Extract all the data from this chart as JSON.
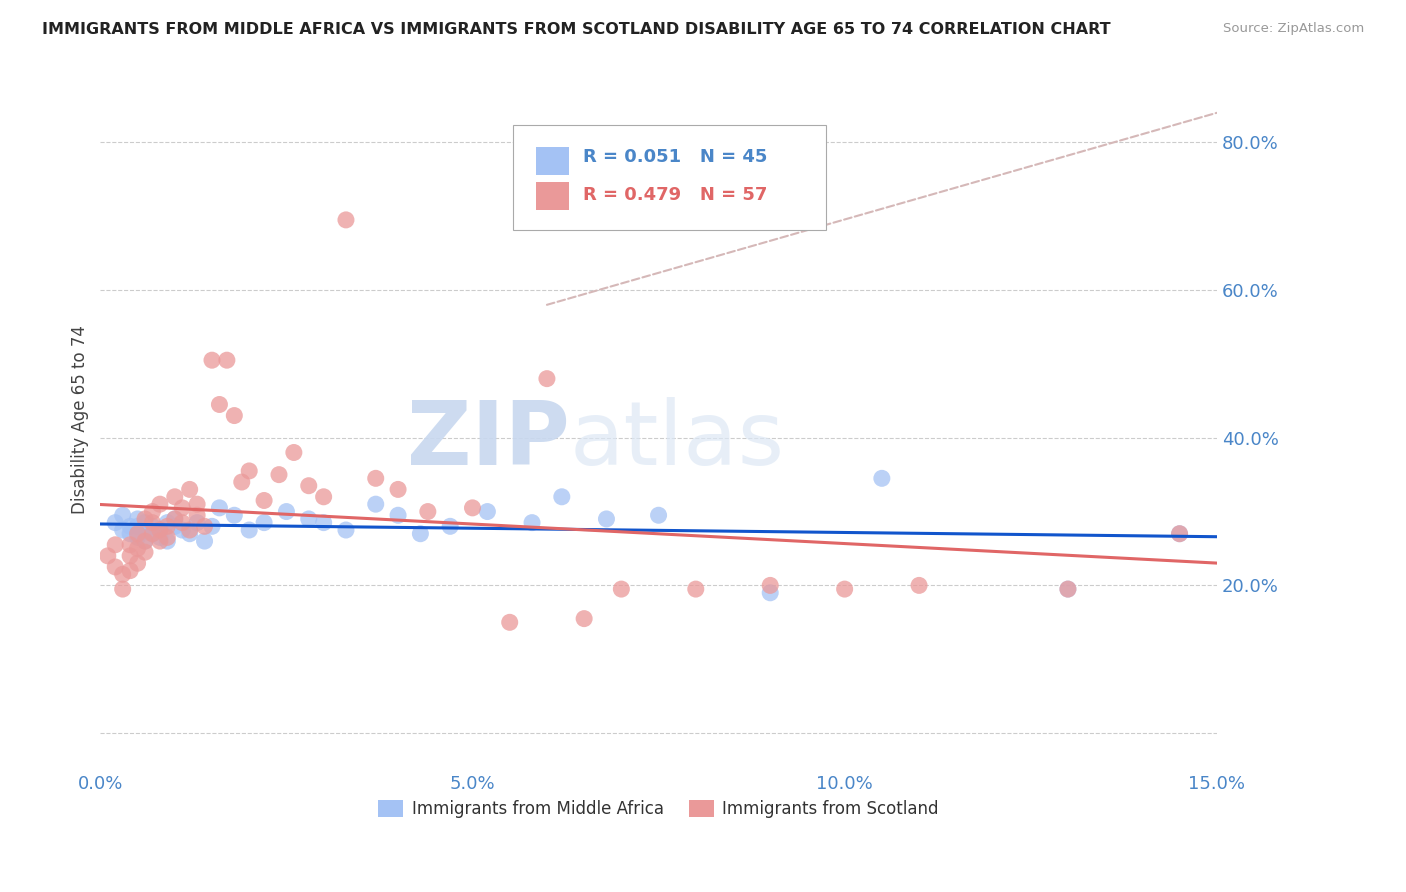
{
  "title": "IMMIGRANTS FROM MIDDLE AFRICA VS IMMIGRANTS FROM SCOTLAND DISABILITY AGE 65 TO 74 CORRELATION CHART",
  "source": "Source: ZipAtlas.com",
  "ylabel": "Disability Age 65 to 74",
  "xlim": [
    0.0,
    0.15
  ],
  "ylim": [
    -0.05,
    0.9
  ],
  "yticks": [
    0.0,
    0.2,
    0.4,
    0.6,
    0.8
  ],
  "ytick_labels": [
    "",
    "20.0%",
    "40.0%",
    "60.0%",
    "80.0%"
  ],
  "xticks": [
    0.0,
    0.05,
    0.1,
    0.15
  ],
  "xtick_labels": [
    "0.0%",
    "5.0%",
    "10.0%",
    "15.0%"
  ],
  "series1_label": "Immigrants from Middle Africa",
  "series1_color": "#a4c2f4",
  "series1_R": "0.051",
  "series1_N": "45",
  "series2_label": "Immigrants from Scotland",
  "series2_color": "#ea9999",
  "series2_R": "0.479",
  "series2_N": "57",
  "watermark_zip": "ZIP",
  "watermark_atlas": "atlas",
  "background_color": "#ffffff",
  "grid_color": "#cccccc",
  "axis_color": "#4a86c8",
  "blue_line_color": "#1155cc",
  "pink_line_color": "#e06666",
  "dashed_line_color": "#d5b8b8",
  "series1_x": [
    0.002,
    0.003,
    0.003,
    0.004,
    0.004,
    0.005,
    0.005,
    0.005,
    0.006,
    0.006,
    0.006,
    0.007,
    0.007,
    0.008,
    0.008,
    0.009,
    0.009,
    0.01,
    0.01,
    0.011,
    0.012,
    0.013,
    0.014,
    0.015,
    0.016,
    0.018,
    0.02,
    0.022,
    0.025,
    0.028,
    0.03,
    0.033,
    0.037,
    0.04,
    0.043,
    0.047,
    0.052,
    0.058,
    0.062,
    0.068,
    0.075,
    0.09,
    0.105,
    0.13,
    0.145
  ],
  "series1_y": [
    0.285,
    0.275,
    0.295,
    0.28,
    0.27,
    0.29,
    0.265,
    0.28,
    0.275,
    0.285,
    0.26,
    0.28,
    0.27,
    0.275,
    0.265,
    0.285,
    0.26,
    0.28,
    0.29,
    0.275,
    0.27,
    0.285,
    0.26,
    0.28,
    0.305,
    0.295,
    0.275,
    0.285,
    0.3,
    0.29,
    0.285,
    0.275,
    0.31,
    0.295,
    0.27,
    0.28,
    0.3,
    0.285,
    0.32,
    0.29,
    0.295,
    0.19,
    0.345,
    0.195,
    0.27
  ],
  "series2_x": [
    0.001,
    0.002,
    0.002,
    0.003,
    0.003,
    0.004,
    0.004,
    0.004,
    0.005,
    0.005,
    0.005,
    0.006,
    0.006,
    0.006,
    0.007,
    0.007,
    0.007,
    0.008,
    0.008,
    0.008,
    0.009,
    0.009,
    0.01,
    0.01,
    0.011,
    0.011,
    0.012,
    0.012,
    0.013,
    0.013,
    0.014,
    0.015,
    0.016,
    0.017,
    0.018,
    0.019,
    0.02,
    0.022,
    0.024,
    0.026,
    0.028,
    0.03,
    0.033,
    0.037,
    0.04,
    0.044,
    0.05,
    0.055,
    0.06,
    0.065,
    0.07,
    0.08,
    0.09,
    0.1,
    0.11,
    0.13,
    0.145
  ],
  "series2_y": [
    0.24,
    0.225,
    0.255,
    0.195,
    0.215,
    0.22,
    0.24,
    0.255,
    0.23,
    0.25,
    0.27,
    0.26,
    0.245,
    0.29,
    0.27,
    0.285,
    0.3,
    0.275,
    0.26,
    0.31,
    0.28,
    0.265,
    0.29,
    0.32,
    0.285,
    0.305,
    0.275,
    0.33,
    0.295,
    0.31,
    0.28,
    0.505,
    0.445,
    0.505,
    0.43,
    0.34,
    0.355,
    0.315,
    0.35,
    0.38,
    0.335,
    0.32,
    0.695,
    0.345,
    0.33,
    0.3,
    0.305,
    0.15,
    0.48,
    0.155,
    0.195,
    0.195,
    0.2,
    0.195,
    0.2,
    0.195,
    0.27
  ],
  "legend_R1_color": "#4a86c8",
  "legend_R2_color": "#e06666"
}
